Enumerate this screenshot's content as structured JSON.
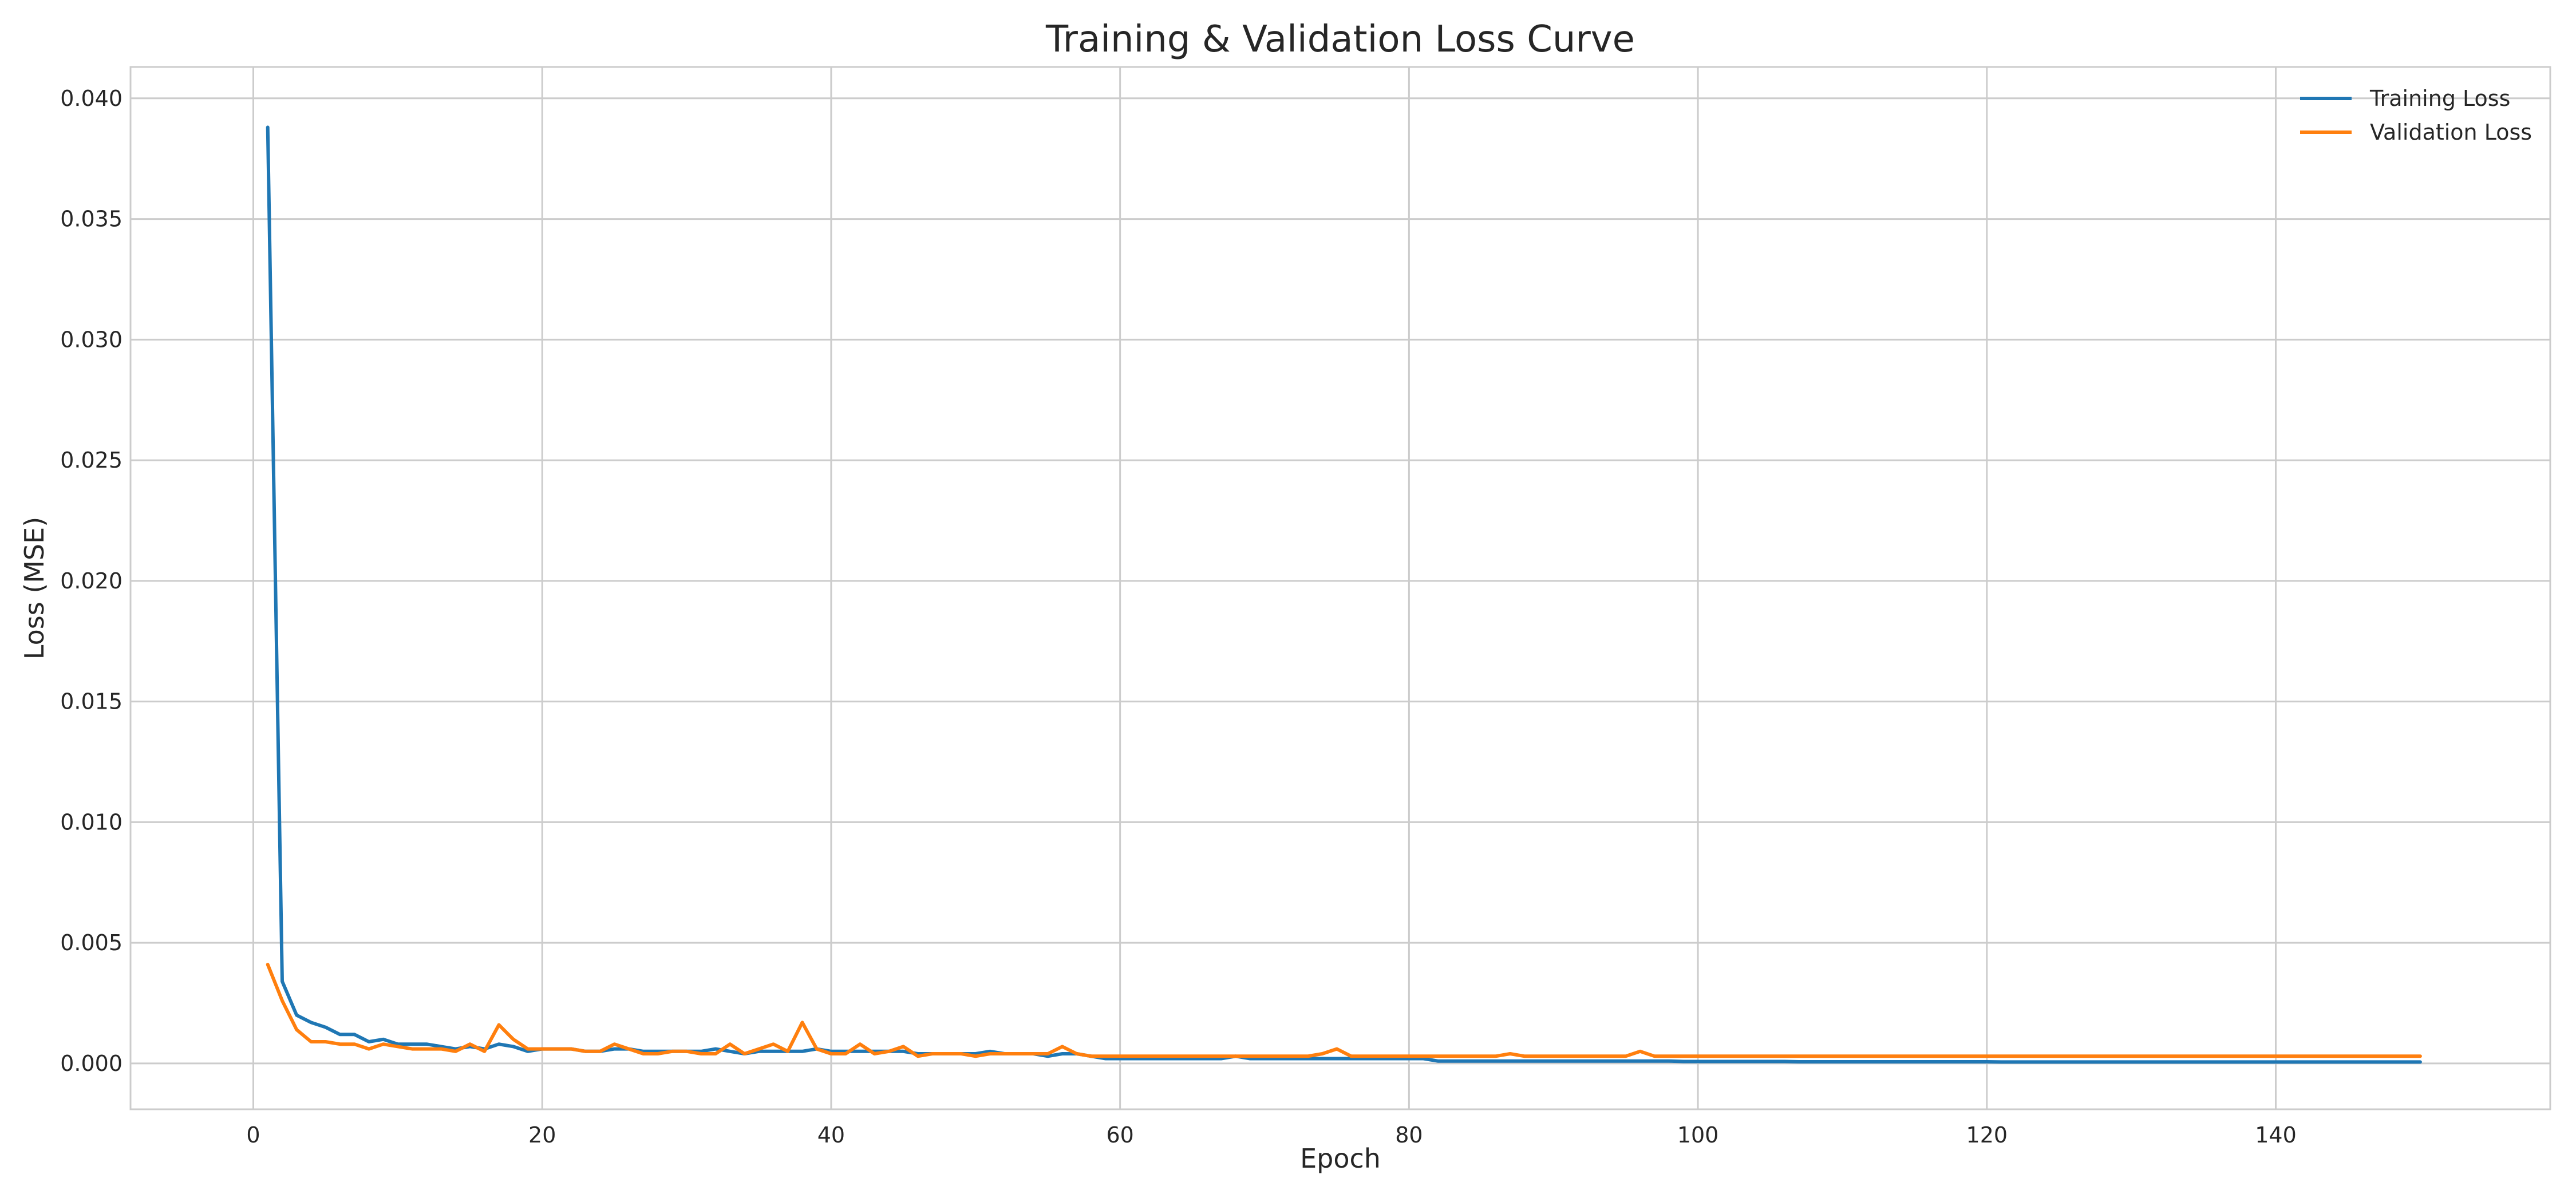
{
  "chart_data": {
    "type": "line",
    "title": "Training & Validation Loss Curve",
    "xlabel": "Epoch",
    "ylabel": "Loss (MSE)",
    "xlim": [
      -8.5,
      159
    ],
    "ylim": [
      -0.0019,
      0.0413
    ],
    "xticks": [
      0,
      20,
      40,
      60,
      80,
      100,
      120,
      140
    ],
    "yticks": [
      0.0,
      0.005,
      0.01,
      0.015,
      0.02,
      0.025,
      0.03,
      0.035,
      0.04
    ],
    "ytick_labels": [
      "0.000",
      "0.005",
      "0.010",
      "0.015",
      "0.020",
      "0.025",
      "0.030",
      "0.035",
      "0.040"
    ],
    "grid": true,
    "legend_position": "top-right",
    "colors": {
      "training": "#1f77b4",
      "validation": "#ff7f0e",
      "grid": "#cccccc",
      "frame": "#cccccc"
    },
    "x": [
      1,
      2,
      3,
      4,
      5,
      6,
      7,
      8,
      9,
      10,
      11,
      12,
      13,
      14,
      15,
      16,
      17,
      18,
      19,
      20,
      21,
      22,
      23,
      24,
      25,
      26,
      27,
      28,
      29,
      30,
      31,
      32,
      33,
      34,
      35,
      36,
      37,
      38,
      39,
      40,
      41,
      42,
      43,
      44,
      45,
      46,
      47,
      48,
      49,
      50,
      51,
      52,
      53,
      54,
      55,
      56,
      57,
      58,
      59,
      60,
      61,
      62,
      63,
      64,
      65,
      66,
      67,
      68,
      69,
      70,
      71,
      72,
      73,
      74,
      75,
      76,
      77,
      78,
      79,
      80,
      81,
      82,
      83,
      84,
      85,
      86,
      87,
      88,
      89,
      90,
      91,
      92,
      93,
      94,
      95,
      96,
      97,
      98,
      99,
      100,
      101,
      102,
      103,
      104,
      105,
      106,
      107,
      108,
      109,
      110,
      111,
      112,
      113,
      114,
      115,
      116,
      117,
      118,
      119,
      120,
      121,
      122,
      123,
      124,
      125,
      126,
      127,
      128,
      129,
      130,
      131,
      132,
      133,
      134,
      135,
      136,
      137,
      138,
      139,
      140,
      141,
      142,
      143,
      144,
      145,
      146,
      147,
      148,
      149,
      150
    ],
    "series": [
      {
        "name": "Training Loss",
        "values": [
          0.0388,
          0.0034,
          0.002,
          0.0017,
          0.0015,
          0.0012,
          0.0012,
          0.0009,
          0.001,
          0.0008,
          0.0008,
          0.0008,
          0.0007,
          0.0006,
          0.0007,
          0.0006,
          0.0008,
          0.0007,
          0.0005,
          0.0006,
          0.0006,
          0.0006,
          0.0005,
          0.0005,
          0.0006,
          0.0006,
          0.0005,
          0.0005,
          0.0005,
          0.0005,
          0.0005,
          0.0006,
          0.0005,
          0.0004,
          0.0005,
          0.0005,
          0.0005,
          0.0005,
          0.0006,
          0.0005,
          0.0005,
          0.0005,
          0.0005,
          0.0005,
          0.0005,
          0.0004,
          0.0004,
          0.0004,
          0.0004,
          0.0004,
          0.0005,
          0.0004,
          0.0004,
          0.0004,
          0.0003,
          0.0004,
          0.0004,
          0.0003,
          0.0002,
          0.0002,
          0.0002,
          0.0002,
          0.0002,
          0.0002,
          0.0002,
          0.0002,
          0.0002,
          0.0003,
          0.0002,
          0.0002,
          0.0002,
          0.0002,
          0.0002,
          0.0002,
          0.0002,
          0.0002,
          0.0002,
          0.0002,
          0.0002,
          0.0002,
          0.0002,
          0.0001,
          0.0001,
          0.0001,
          0.0001,
          0.0001,
          0.0001,
          0.0001,
          0.0001,
          0.0001,
          0.0001,
          0.0001,
          0.0001,
          0.0001,
          0.0001,
          0.0001,
          0.0001,
          0.0001,
          8e-05,
          8e-05,
          8e-05,
          8e-05,
          8e-05,
          8e-05,
          8e-05,
          8e-05,
          7e-05,
          7e-05,
          7e-05,
          7e-05,
          7e-05,
          7e-05,
          7e-05,
          7e-05,
          7e-05,
          7e-05,
          7e-05,
          7e-05,
          7e-05,
          7e-05,
          6e-05,
          6e-05,
          6e-05,
          6e-05,
          6e-05,
          6e-05,
          6e-05,
          6e-05,
          6e-05,
          6e-05,
          6e-05,
          6e-05,
          6e-05,
          6e-05,
          6e-05,
          6e-05,
          6e-05,
          6e-05,
          6e-05,
          6e-05,
          6e-05,
          6e-05,
          6e-05,
          6e-05,
          6e-05,
          6e-05,
          6e-05,
          6e-05,
          6e-05,
          6e-05
        ]
      },
      {
        "name": "Validation Loss",
        "values": [
          0.0041,
          0.0026,
          0.0014,
          0.0009,
          0.0009,
          0.0008,
          0.0008,
          0.0006,
          0.0008,
          0.0007,
          0.0006,
          0.0006,
          0.0006,
          0.0005,
          0.0008,
          0.0005,
          0.0016,
          0.001,
          0.0006,
          0.0006,
          0.0006,
          0.0006,
          0.0005,
          0.0005,
          0.0008,
          0.0006,
          0.0004,
          0.0004,
          0.0005,
          0.0005,
          0.0004,
          0.0004,
          0.0008,
          0.0004,
          0.0006,
          0.0008,
          0.0005,
          0.0017,
          0.0006,
          0.0004,
          0.0004,
          0.0008,
          0.0004,
          0.0005,
          0.0007,
          0.0003,
          0.0004,
          0.0004,
          0.0004,
          0.0003,
          0.0004,
          0.0004,
          0.0004,
          0.0004,
          0.0004,
          0.0007,
          0.0004,
          0.0003,
          0.0003,
          0.0003,
          0.0003,
          0.0003,
          0.0003,
          0.0003,
          0.0003,
          0.0003,
          0.0003,
          0.0003,
          0.0003,
          0.0003,
          0.0003,
          0.0003,
          0.0003,
          0.0004,
          0.0006,
          0.0003,
          0.0003,
          0.0003,
          0.0003,
          0.0003,
          0.0003,
          0.0003,
          0.0003,
          0.0003,
          0.0003,
          0.0003,
          0.0004,
          0.0003,
          0.0003,
          0.0003,
          0.0003,
          0.0003,
          0.0003,
          0.0003,
          0.0003,
          0.0005,
          0.0003,
          0.0003,
          0.0003,
          0.0003,
          0.0003,
          0.0003,
          0.0003,
          0.0003,
          0.0003,
          0.0003,
          0.0003,
          0.0003,
          0.0003,
          0.0003,
          0.0003,
          0.0003,
          0.0003,
          0.0003,
          0.0003,
          0.0003,
          0.0003,
          0.0003,
          0.0003,
          0.0003,
          0.0003,
          0.0003,
          0.0003,
          0.0003,
          0.0003,
          0.0003,
          0.0003,
          0.0003,
          0.0003,
          0.0003,
          0.0003,
          0.0003,
          0.0003,
          0.0003,
          0.0003,
          0.0003,
          0.0003,
          0.0003,
          0.0003,
          0.0003,
          0.0003,
          0.0003,
          0.0003,
          0.0003,
          0.0003,
          0.0003,
          0.0003,
          0.0003,
          0.0003,
          0.0003
        ]
      }
    ]
  }
}
